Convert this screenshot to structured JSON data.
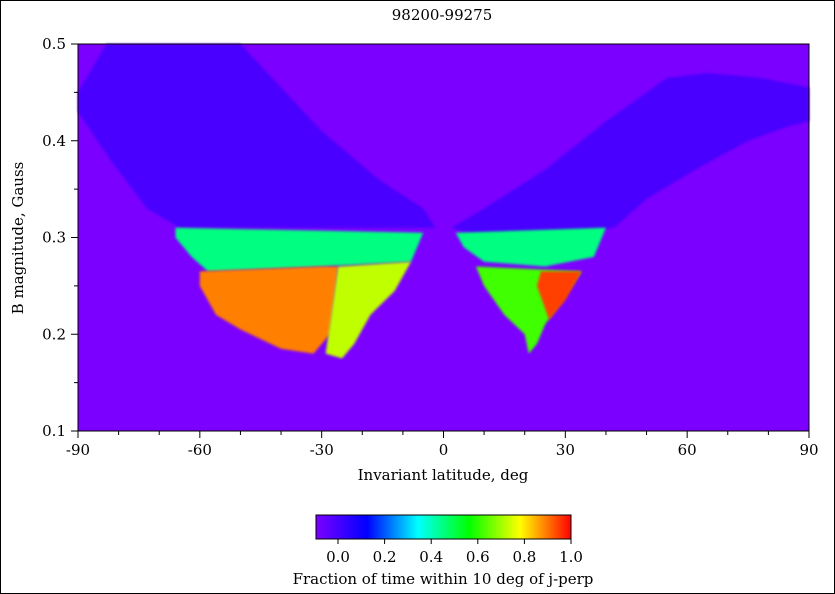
{
  "chart_data": {
    "type": "heatmap",
    "title": "98200-99275",
    "xlabel": "Invariant latitude, deg",
    "ylabel": "B magnitude, Gauss",
    "xlim": [
      -90,
      90
    ],
    "ylim": [
      0.1,
      0.5
    ],
    "x_ticks": [
      -90,
      -60,
      -30,
      0,
      30,
      60,
      90
    ],
    "y_ticks": [
      0.1,
      0.2,
      0.3,
      0.4,
      0.5
    ],
    "x_tick_labels": [
      "-90",
      "-60",
      "-30",
      "0",
      "30",
      "60",
      "90"
    ],
    "y_tick_labels": [
      "0.1",
      "0.2",
      "0.3",
      "0.4",
      "0.5"
    ],
    "background_value": 0.0,
    "background_color": "#7b00ff",
    "grid": false,
    "colorbar": {
      "label": "Fraction of time within 10 deg of  j-perp",
      "range": [
        0.0,
        1.0
      ],
      "ticks": [
        0.0,
        0.2,
        0.4,
        0.6,
        0.8,
        1.0
      ],
      "tick_labels": [
        "0.0",
        "0.2",
        "0.4",
        "0.6",
        "0.8",
        "1.0"
      ],
      "placement": "bottom",
      "colors": [
        "#7b00ff",
        "#0000ff",
        "#00ffff",
        "#00ff00",
        "#ffff00",
        "#ff0000"
      ]
    },
    "regions": [
      {
        "name": "southern low-fraction band",
        "approx_value": 0.08,
        "outline_lat_B": [
          [
            -90,
            0.45
          ],
          [
            -83,
            0.5
          ],
          [
            -50,
            0.5
          ],
          [
            -30,
            0.41
          ],
          [
            -16,
            0.36
          ],
          [
            -5,
            0.33
          ],
          [
            -2,
            0.31
          ],
          [
            -10,
            0.31
          ],
          [
            -40,
            0.31
          ],
          [
            -65,
            0.31
          ],
          [
            -73,
            0.33
          ],
          [
            -82,
            0.38
          ],
          [
            -90,
            0.43
          ]
        ]
      },
      {
        "name": "northern low-fraction band",
        "approx_value": 0.08,
        "outline_lat_B": [
          [
            2,
            0.31
          ],
          [
            10,
            0.33
          ],
          [
            25,
            0.37
          ],
          [
            40,
            0.42
          ],
          [
            55,
            0.465
          ],
          [
            65,
            0.47
          ],
          [
            78,
            0.465
          ],
          [
            90,
            0.455
          ],
          [
            90,
            0.42
          ],
          [
            85,
            0.415
          ],
          [
            75,
            0.4
          ],
          [
            62,
            0.37
          ],
          [
            50,
            0.34
          ],
          [
            42,
            0.31
          ],
          [
            30,
            0.305
          ],
          [
            10,
            0.3
          ]
        ]
      },
      {
        "name": "southern green belt",
        "approx_value": 0.5,
        "outline_lat_B": [
          [
            -66,
            0.31
          ],
          [
            -5,
            0.305
          ],
          [
            -8,
            0.275
          ],
          [
            -30,
            0.27
          ],
          [
            -58,
            0.265
          ],
          [
            -62,
            0.28
          ],
          [
            -66,
            0.3
          ]
        ]
      },
      {
        "name": "southern high-fraction core",
        "approx_value": 0.9,
        "outline_lat_B": [
          [
            -60,
            0.265
          ],
          [
            -30,
            0.27
          ],
          [
            -26,
            0.27
          ],
          [
            -28,
            0.2
          ],
          [
            -32,
            0.18
          ],
          [
            -40,
            0.185
          ],
          [
            -50,
            0.205
          ],
          [
            -56,
            0.22
          ],
          [
            -60,
            0.25
          ]
        ]
      },
      {
        "name": "southern yellow edge",
        "approx_value": 0.75,
        "outline_lat_B": [
          [
            -26,
            0.27
          ],
          [
            -8,
            0.275
          ],
          [
            -12,
            0.245
          ],
          [
            -18,
            0.22
          ],
          [
            -22,
            0.19
          ],
          [
            -25,
            0.175
          ],
          [
            -29,
            0.18
          ],
          [
            -28,
            0.21
          ]
        ]
      },
      {
        "name": "northern green belt",
        "approx_value": 0.5,
        "outline_lat_B": [
          [
            3,
            0.305
          ],
          [
            40,
            0.31
          ],
          [
            37,
            0.28
          ],
          [
            25,
            0.27
          ],
          [
            10,
            0.275
          ],
          [
            5,
            0.29
          ]
        ]
      },
      {
        "name": "northern cone",
        "approx_value": 0.65,
        "outline_lat_B": [
          [
            8,
            0.27
          ],
          [
            34,
            0.265
          ],
          [
            30,
            0.24
          ],
          [
            25,
            0.21
          ],
          [
            23,
            0.19
          ],
          [
            21,
            0.18
          ],
          [
            20,
            0.2
          ],
          [
            15,
            0.22
          ],
          [
            10,
            0.25
          ]
        ]
      },
      {
        "name": "northern high-fraction streak",
        "approx_value": 0.95,
        "outline_lat_B": [
          [
            24,
            0.265
          ],
          [
            34,
            0.265
          ],
          [
            30,
            0.235
          ],
          [
            26,
            0.215
          ],
          [
            23,
            0.25
          ]
        ]
      }
    ]
  }
}
